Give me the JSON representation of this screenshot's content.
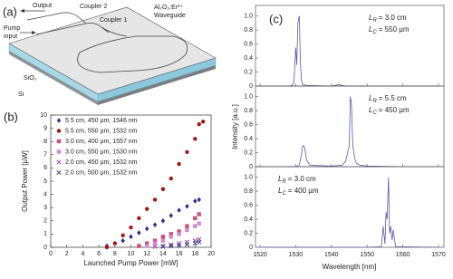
{
  "diagram": {
    "panel_label": "(a)",
    "labels": {
      "output": "Output",
      "pump_input": [
        "Pump",
        "input"
      ],
      "coupler_2": "Coupler 2",
      "coupler_1": "Coupler 1",
      "waveguide": [
        "Al₂O₃:Er³⁺",
        "Waveguide"
      ],
      "sio2": "SiO₂",
      "si": "Si"
    }
  },
  "chart_data": [
    {
      "type": "scatter",
      "panel_label": "(b)",
      "xlabel": "Launched Pump Power [mW]",
      "ylabel": "Output Power [µW]",
      "xlim": [
        0,
        20
      ],
      "xticks": [
        0,
        2,
        4,
        6,
        8,
        10,
        12,
        14,
        16,
        18,
        20
      ],
      "ylim": [
        0,
        10
      ],
      "yticks": [
        0,
        1,
        2,
        3,
        4,
        5,
        6,
        7,
        8,
        9,
        10
      ],
      "legend": "upper left",
      "series": [
        {
          "name": "5.5 cm, 450 µm, 1546 nm",
          "color": "#2b2f8f",
          "marker": "diamond",
          "x": [
            7,
            8,
            9,
            10,
            11,
            12,
            13,
            14,
            15,
            16,
            17,
            18,
            18.5
          ],
          "values": [
            0.1,
            0.3,
            0.5,
            0.8,
            1.1,
            1.4,
            1.7,
            2.0,
            2.4,
            2.8,
            3.1,
            3.5,
            3.6
          ]
        },
        {
          "name": "5.5 cm, 550 µm, 1532 nm",
          "color": "#a01818",
          "marker": "circle",
          "x": [
            7,
            8,
            9,
            10,
            11,
            12,
            13,
            14,
            15,
            16,
            17,
            18,
            18.5,
            19
          ],
          "values": [
            0,
            0.3,
            0.9,
            1.5,
            2.2,
            2.9,
            3.6,
            4.4,
            5.2,
            6.3,
            7.2,
            8.2,
            9.3,
            9.5
          ]
        },
        {
          "name": "3.0 cm, 400 µm, 1557 nm",
          "color": "#c8507a",
          "marker": "square",
          "x": [
            11,
            12,
            13,
            14,
            15,
            16,
            17,
            18,
            18.5
          ],
          "values": [
            0.1,
            0.3,
            0.5,
            0.8,
            1.0,
            1.2,
            1.6,
            2.2,
            2.5
          ]
        },
        {
          "name": "3.0 cm, 550 µm, 1530 nm",
          "color": "#d28ad0",
          "marker": "square",
          "x": [
            12,
            13,
            14,
            15,
            16,
            17,
            18,
            18.5
          ],
          "values": [
            0.1,
            0.3,
            0.5,
            0.8,
            1.0,
            1.3,
            1.6,
            1.8
          ]
        },
        {
          "name": "2.0 cm, 450 µm, 1532 nm",
          "color": "#9b3fa0",
          "marker": "x",
          "x": [
            13,
            14,
            15,
            16,
            17,
            18,
            18.5
          ],
          "values": [
            0.05,
            0.1,
            0.2,
            0.3,
            0.4,
            0.5,
            0.6
          ]
        },
        {
          "name": "2.0 cm, 500 µm, 1532 nm",
          "color": "#3a3a8a",
          "marker": "x",
          "x": [
            14,
            15,
            16,
            17,
            18,
            18.5
          ],
          "values": [
            0.05,
            0.1,
            0.15,
            0.2,
            0.3,
            0.4
          ]
        }
      ]
    },
    {
      "type": "line",
      "panel_label": "(c)",
      "color": "#5a5aa8",
      "annotations": [
        {
          "symbol": "L",
          "sub": "R",
          "text": "= 3.0 cm"
        },
        {
          "symbol": "L",
          "sub": "C",
          "text": "= 550 µm"
        }
      ],
      "x": [
        1520,
        1528,
        1529,
        1529.5,
        1530,
        1530.3,
        1530.6,
        1531,
        1531.3,
        1531.6,
        1532,
        1533,
        1540,
        1542,
        1544,
        1550,
        1560,
        1570
      ],
      "values": [
        0,
        0,
        0.01,
        0.05,
        0.55,
        0.3,
        0.9,
        1.0,
        0.35,
        0.08,
        0.02,
        0.01,
        0,
        0.02,
        0,
        0,
        0,
        0
      ],
      "xlim": [
        1520,
        1570
      ],
      "xticks": [
        1520,
        1530,
        1540,
        1550,
        1560,
        1570
      ],
      "ylim": [
        0,
        1.15
      ],
      "yticks": [
        0,
        0.2,
        0.4,
        0.6,
        0.8,
        {
          "value": 1,
          "label": "1.0"
        }
      ]
    },
    {
      "type": "line",
      "color": "#5a5aa8",
      "ylabel": "Intensity [a.u.]",
      "annotations": [
        {
          "symbol": "L",
          "sub": "R",
          "text": "= 5.5 cm"
        },
        {
          "symbol": "L",
          "sub": "C",
          "text": "= 450 µm"
        }
      ],
      "x": [
        1520,
        1530,
        1531,
        1531.5,
        1532,
        1532.5,
        1533,
        1534,
        1540,
        1543,
        1544,
        1545,
        1545.3,
        1545.6,
        1546,
        1546.5,
        1547,
        1548,
        1550,
        1560,
        1570
      ],
      "values": [
        0,
        0,
        0.02,
        0.15,
        0.3,
        0.28,
        0.1,
        0.02,
        0.01,
        0.02,
        0.08,
        0.3,
        1.0,
        0.9,
        0.3,
        0.12,
        0.05,
        0.02,
        0.01,
        0,
        0
      ],
      "xlim": [
        1520,
        1570
      ],
      "xticks": [
        1520,
        1530,
        1540,
        1550,
        1560,
        1570
      ],
      "ylim": [
        0,
        1.15
      ],
      "yticks": [
        0,
        0.2,
        0.4,
        0.6,
        0.8,
        {
          "value": 1,
          "label": "1.0"
        }
      ]
    },
    {
      "type": "line",
      "color": "#5a5aa8",
      "xlabel": "Wavelength [nm]",
      "annotations": [
        {
          "symbol": "L",
          "sub": "R",
          "text": "= 3.0 cm"
        },
        {
          "symbol": "L",
          "sub": "C",
          "text": "= 400 µm"
        }
      ],
      "x": [
        1520,
        1550,
        1554,
        1554.5,
        1555,
        1555.3,
        1555.6,
        1556,
        1556.3,
        1556.6,
        1557,
        1557.3,
        1558,
        1570
      ],
      "values": [
        0,
        0,
        0.01,
        0.3,
        0.05,
        0.5,
        0.4,
        1.0,
        0.2,
        0.3,
        0.1,
        0.25,
        0.01,
        0
      ],
      "xlim": [
        1520,
        1570
      ],
      "xticks": [
        1520,
        1530,
        1540,
        1550,
        1560,
        1570
      ],
      "ylim": [
        0,
        1.15
      ],
      "yticks": [
        0,
        0.2,
        0.4,
        0.6,
        0.8,
        {
          "value": 1,
          "label": "1.0"
        }
      ]
    }
  ]
}
